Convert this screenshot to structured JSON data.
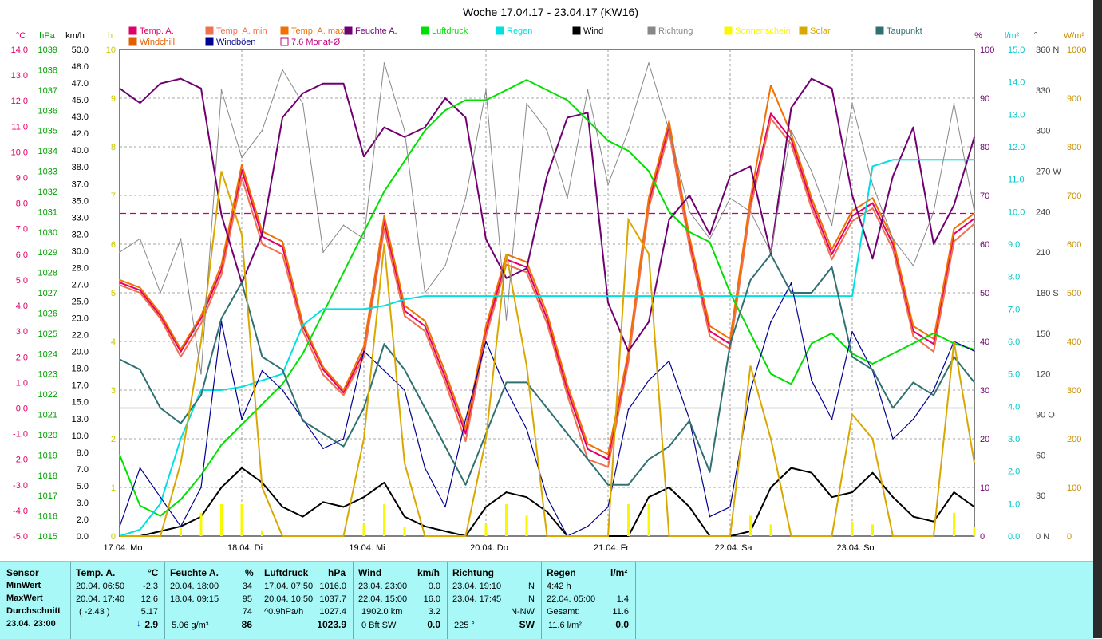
{
  "chart_data": {
    "type": "line",
    "title": "Woche 17.04.17 - 23.04.17 (KW16)",
    "legend": [
      {
        "name": "Temp. A.",
        "color": "#e0006a"
      },
      {
        "name": "Temp. A. min",
        "color": "#f07050"
      },
      {
        "name": "Temp. A. max",
        "color": "#f07000"
      },
      {
        "name": "Feuchte A.",
        "color": "#700070"
      },
      {
        "name": "Luftdruck",
        "color": "#00e000"
      },
      {
        "name": "Regen",
        "color": "#00e0e0"
      },
      {
        "name": "Wind",
        "color": "#000000"
      },
      {
        "name": "Richtung",
        "color": "#888888"
      },
      {
        "name": "Sonnenschein",
        "color": "#f8f800"
      },
      {
        "name": "Solar",
        "color": "#d8a800"
      },
      {
        "name": "Taupunkt",
        "color": "#307070"
      },
      {
        "name": "Windchill",
        "color": "#e06000"
      },
      {
        "name": "Windböen",
        "color": "#000090"
      },
      {
        "name": "7.6 Monat-Ø",
        "color": "#c00080"
      }
    ],
    "axes": {
      "temp": {
        "unit": "°C",
        "min": -5,
        "max": 14,
        "ticks": [
          "14.0",
          "13.0",
          "12.0",
          "11.0",
          "10.0",
          "9.0",
          "8.0",
          "7.0",
          "6.0",
          "5.0",
          "4.0",
          "3.0",
          "2.0",
          "1.0",
          "0.0",
          "-1.0",
          "-2.0",
          "-3.0",
          "-4.0",
          "-5.0"
        ],
        "color": "#e0006a"
      },
      "pressure": {
        "unit": "hPa",
        "min": 1015,
        "max": 1039,
        "ticks": [
          "1039",
          "1038",
          "1037",
          "1036",
          "1035",
          "1034",
          "1033",
          "1032",
          "1031",
          "1030",
          "1029",
          "1028",
          "1027",
          "1026",
          "1025",
          "1024",
          "1023",
          "1022",
          "1021",
          "1020",
          "1019",
          "1018",
          "1017",
          "1016",
          "1015"
        ],
        "color": "#00a000"
      },
      "wind": {
        "unit": "km/h",
        "ticks": [
          "50.0",
          "48.0",
          "47.0",
          "45.0",
          "43.0",
          "42.0",
          "40.0",
          "38.0",
          "37.0",
          "35.0",
          "33.0",
          "32.0",
          "30.0",
          "28.0",
          "27.0",
          "25.0",
          "23.0",
          "22.0",
          "20.0",
          "18.0",
          "17.0",
          "15.0",
          "13.0",
          "10.0",
          "8.0",
          "7.0",
          "5.0",
          "3.0",
          "2.0",
          "0.0"
        ],
        "color": "#000000"
      },
      "sun": {
        "unit": "h",
        "min": 0,
        "max": 10,
        "ticks": [
          "10",
          "9",
          "8",
          "7",
          "6",
          "5",
          "4",
          "3",
          "2",
          "1",
          "0"
        ],
        "color": "#c8c800"
      },
      "humidity": {
        "unit": "%",
        "min": 0,
        "max": 100,
        "ticks": [
          "100",
          "90",
          "80",
          "70",
          "60",
          "50",
          "40",
          "30",
          "20",
          "10",
          "0"
        ],
        "color": "#700070"
      },
      "rain": {
        "unit": "l/m²",
        "min": 0,
        "max": 15,
        "ticks": [
          "15.0",
          "14.0",
          "13.0",
          "12.0",
          "11.0",
          "10.0",
          "9.0",
          "8.0",
          "7.0",
          "6.0",
          "5.0",
          "4.0",
          "3.0",
          "2.0",
          "1.0",
          "0.0"
        ],
        "color": "#00c8c8"
      },
      "direction": {
        "unit": "°",
        "min": 0,
        "max": 360,
        "ticks": [
          "360 N",
          "330",
          "300",
          "270 W",
          "240",
          "210",
          "180 S",
          "150",
          "120",
          "90 O",
          "60",
          "30",
          "0 N"
        ],
        "color": "#444444"
      },
      "solar": {
        "unit": "W/m²",
        "min": 0,
        "max": 1000,
        "ticks": [
          "1000",
          "900",
          "800",
          "700",
          "600",
          "500",
          "400",
          "300",
          "200",
          "100",
          "0"
        ],
        "color": "#c89000"
      }
    },
    "x_labels": [
      "17.04. Mo",
      "18.04. Di",
      "19.04. Mi",
      "20.04. Do",
      "21.04. Fr",
      "22.04. Sa",
      "23.04. So"
    ],
    "x": [
      0,
      4,
      8,
      12,
      16,
      20,
      24,
      28,
      32,
      36,
      40,
      44,
      48,
      52,
      56,
      60,
      64,
      68,
      72,
      76,
      80,
      84,
      88,
      92,
      96,
      100,
      104,
      108,
      112,
      116,
      120,
      124,
      128,
      132,
      136,
      140,
      144,
      148,
      152,
      156,
      160,
      164,
      168
    ],
    "series": [
      {
        "name": "Temp. A.",
        "axis": "temp",
        "values": [
          4.9,
          4.6,
          3.6,
          2.2,
          3.5,
          5.4,
          9.3,
          6.7,
          6.3,
          3.2,
          1.5,
          0.6,
          2.2,
          7.3,
          3.8,
          3.2,
          1.2,
          -1.0,
          3.0,
          5.8,
          5.5,
          3.5,
          0.7,
          -1.6,
          -2.0,
          2.0,
          8.0,
          11.0,
          6.5,
          3.0,
          2.5,
          8.0,
          11.5,
          10.5,
          8.0,
          6.0,
          7.5,
          8.0,
          6.4,
          3.0,
          2.5,
          6.8,
          7.4
        ]
      },
      {
        "name": "Temp. A. min",
        "axis": "temp",
        "values": [
          4.8,
          4.5,
          3.5,
          2.0,
          3.3,
          5.2,
          9.0,
          6.4,
          6.0,
          3.0,
          1.3,
          0.5,
          2.0,
          7.0,
          3.6,
          3.0,
          1.0,
          -1.3,
          2.8,
          5.6,
          5.3,
          3.3,
          0.5,
          -2.0,
          -2.3,
          1.8,
          7.8,
          10.8,
          6.3,
          2.8,
          2.3,
          7.8,
          11.3,
          10.3,
          7.8,
          5.8,
          7.3,
          7.8,
          6.2,
          2.8,
          2.2,
          6.5,
          7.2
        ]
      },
      {
        "name": "Temp. A. max",
        "axis": "temp",
        "values": [
          5.0,
          4.7,
          3.7,
          2.3,
          3.6,
          5.6,
          9.5,
          6.9,
          6.5,
          3.3,
          1.6,
          0.7,
          2.4,
          7.5,
          4.0,
          3.4,
          1.4,
          -0.8,
          3.2,
          6.0,
          5.7,
          3.7,
          0.9,
          -1.4,
          -1.8,
          2.2,
          8.2,
          11.2,
          6.7,
          3.2,
          2.7,
          8.2,
          12.6,
          10.7,
          8.2,
          6.2,
          7.7,
          8.2,
          6.6,
          3.2,
          2.7,
          7.0,
          7.6
        ]
      },
      {
        "name": "Feuchte A.",
        "axis": "humidity",
        "values": [
          92,
          89,
          93,
          94,
          92,
          66,
          52,
          62,
          86,
          91,
          93,
          93,
          78,
          84,
          82,
          84,
          90,
          86,
          61,
          53,
          55,
          74,
          86,
          87,
          48,
          38,
          44,
          65,
          70,
          62,
          74,
          76,
          58,
          88,
          94,
          92,
          70,
          57,
          74,
          84,
          60,
          68,
          82
        ]
      },
      {
        "name": "Luftdruck",
        "axis": "pressure",
        "values": [
          1019.0,
          1016.5,
          1016.0,
          1016.8,
          1018.0,
          1019.5,
          1020.5,
          1021.5,
          1022.5,
          1024.0,
          1026.0,
          1028.0,
          1030.0,
          1032.0,
          1033.5,
          1035.0,
          1036.0,
          1036.5,
          1036.5,
          1037.0,
          1037.5,
          1037.0,
          1036.5,
          1035.5,
          1034.5,
          1034.0,
          1033.0,
          1031.0,
          1030.0,
          1029.5,
          1027.0,
          1025.0,
          1023.0,
          1022.5,
          1024.5,
          1025.0,
          1024.0,
          1023.5,
          1024.0,
          1024.5,
          1025.0,
          1024.5,
          1024.2
        ]
      },
      {
        "name": "Regen",
        "axis": "rain",
        "values": [
          0.0,
          0.2,
          1.0,
          3.0,
          4.5,
          4.5,
          4.6,
          4.8,
          5.0,
          6.5,
          7.0,
          7.0,
          7.0,
          7.1,
          7.3,
          7.4,
          7.4,
          7.4,
          7.4,
          7.4,
          7.4,
          7.4,
          7.4,
          7.4,
          7.4,
          7.4,
          7.4,
          7.4,
          7.4,
          7.4,
          7.4,
          7.4,
          7.4,
          7.4,
          7.4,
          7.4,
          7.4,
          11.4,
          11.6,
          11.6,
          11.6,
          11.6,
          11.6
        ]
      },
      {
        "name": "Wind",
        "axis": "wind",
        "values": [
          0.0,
          0.0,
          0.5,
          1.0,
          2.0,
          5.0,
          7.0,
          5.5,
          3.0,
          2.0,
          3.5,
          3.0,
          4.0,
          5.5,
          2.0,
          1.0,
          0.5,
          0.0,
          3.0,
          4.5,
          4.0,
          2.5,
          0.0,
          0.0,
          0.0,
          0.0,
          4.0,
          5.0,
          3.0,
          0.0,
          0.0,
          0.5,
          5.0,
          7.0,
          6.5,
          4.0,
          4.5,
          6.5,
          4.0,
          2.0,
          1.5,
          4.5,
          3.0
        ]
      },
      {
        "name": "Windböen",
        "axis": "wind",
        "values": [
          1.0,
          7.0,
          4.0,
          1.0,
          5.0,
          22.0,
          12.0,
          17.0,
          15.0,
          12.0,
          9.0,
          10.0,
          19.0,
          17.0,
          15.0,
          7.0,
          3.0,
          12.0,
          20.0,
          15.0,
          11.0,
          4.0,
          0.0,
          1.0,
          3.0,
          13.0,
          16.0,
          18.0,
          12.0,
          2.0,
          3.0,
          15.0,
          22.0,
          26.0,
          16.0,
          12.0,
          21.0,
          17.0,
          10.0,
          12.0,
          15.0,
          20.0,
          19.0
        ]
      },
      {
        "name": "Taupunkt",
        "axis": "temp",
        "values": [
          1.9,
          1.5,
          0.0,
          -0.6,
          0.5,
          3.5,
          4.9,
          2.0,
          1.5,
          -0.5,
          -1.0,
          -1.5,
          0.0,
          2.5,
          1.5,
          0.0,
          -1.5,
          -3.0,
          -1.0,
          1.0,
          1.0,
          0.0,
          -1.0,
          -2.0,
          -3.0,
          -3.0,
          -2.0,
          -1.5,
          -0.5,
          -2.5,
          2.5,
          5.0,
          6.0,
          4.5,
          4.5,
          5.5,
          2.0,
          1.5,
          0.0,
          1.0,
          0.5,
          2.0,
          1.0
        ]
      },
      {
        "name": "Solar",
        "axis": "solar",
        "values": [
          0,
          0,
          0,
          150,
          400,
          750,
          620,
          100,
          0,
          0,
          0,
          0,
          200,
          600,
          150,
          0,
          0,
          0,
          200,
          580,
          350,
          0,
          0,
          0,
          0,
          650,
          580,
          0,
          0,
          0,
          0,
          350,
          200,
          0,
          0,
          0,
          250,
          200,
          0,
          0,
          0,
          400,
          150
        ]
      },
      {
        "name": "Richtung",
        "axis": "direction",
        "values": [
          210,
          220,
          180,
          220,
          120,
          330,
          280,
          300,
          345,
          320,
          210,
          230,
          220,
          350,
          300,
          180,
          200,
          250,
          330,
          160,
          320,
          300,
          250,
          330,
          260,
          300,
          350,
          300,
          240,
          220,
          250,
          240,
          210,
          300,
          270,
          230,
          320,
          260,
          220,
          200,
          240,
          320,
          240
        ]
      }
    ],
    "ref_lines": [
      {
        "name": "7.6 Monat-Ø",
        "axis": "temp",
        "value": 7.6,
        "color": "#c00080"
      },
      {
        "name": "0 °C",
        "axis": "temp",
        "value": 0.0,
        "color": "#707070"
      }
    ],
    "grid": true
  },
  "panel": {
    "sensor": {
      "header": "Sensor",
      "min_label": "MinWert",
      "max_label": "MaxWert",
      "avg_label": "Durchschnitt",
      "current_label": "23.04. 23:00"
    },
    "temp": {
      "header": "Temp. A.",
      "unit": "°C",
      "min_date": "20.04. 06:50",
      "min_val": "-2.3",
      "max_date": "20.04. 17:40",
      "max_val": "12.6",
      "avg_extra": "( -2.43 )",
      "avg_val": "5.17",
      "current": "2.9",
      "trend_arrow": "↓"
    },
    "humidity": {
      "header": "Feuchte A.",
      "unit": "%",
      "min_date": "20.04. 18:00",
      "min_val": "34",
      "max_date": "18.04. 09:15",
      "max_val": "95",
      "avg_val": "74",
      "extra": "5.06 g/m³",
      "current": "86"
    },
    "pressure": {
      "header": "Luftdruck",
      "unit": "hPa",
      "min_date": "17.04. 07:50",
      "min_val": "1016.0",
      "max_date": "20.04. 10:50",
      "max_val": "1037.7",
      "avg_extra": "^0.9hPa/h",
      "avg_val": "1027.4",
      "current": "1023.9"
    },
    "wind": {
      "header": "Wind",
      "unit": "km/h",
      "min_date": "23.04. 23:00",
      "min_val": "0.0",
      "max_date": "22.04. 15:00",
      "max_val": "16.0",
      "avg_extra": "1902.0 km",
      "avg_val": "3.2",
      "bft": "0 Bft SW",
      "current": "0.0"
    },
    "direction": {
      "header": "Richtung",
      "min_date": "23.04. 19:10",
      "min_val": "N",
      "max_date": "23.04. 17:45",
      "max_val": "N",
      "avg_val": "N-NW",
      "deg": "225 °",
      "current": "SW"
    },
    "rain": {
      "header": "Regen",
      "unit": "l/m²",
      "row1": "4:42 h",
      "max_date": "22.04. 05:00",
      "max_val": "1.4",
      "total_label": "Gesamt:",
      "total_val": "11.6",
      "extra": "11.6 l/m²",
      "current": "0.0"
    }
  }
}
